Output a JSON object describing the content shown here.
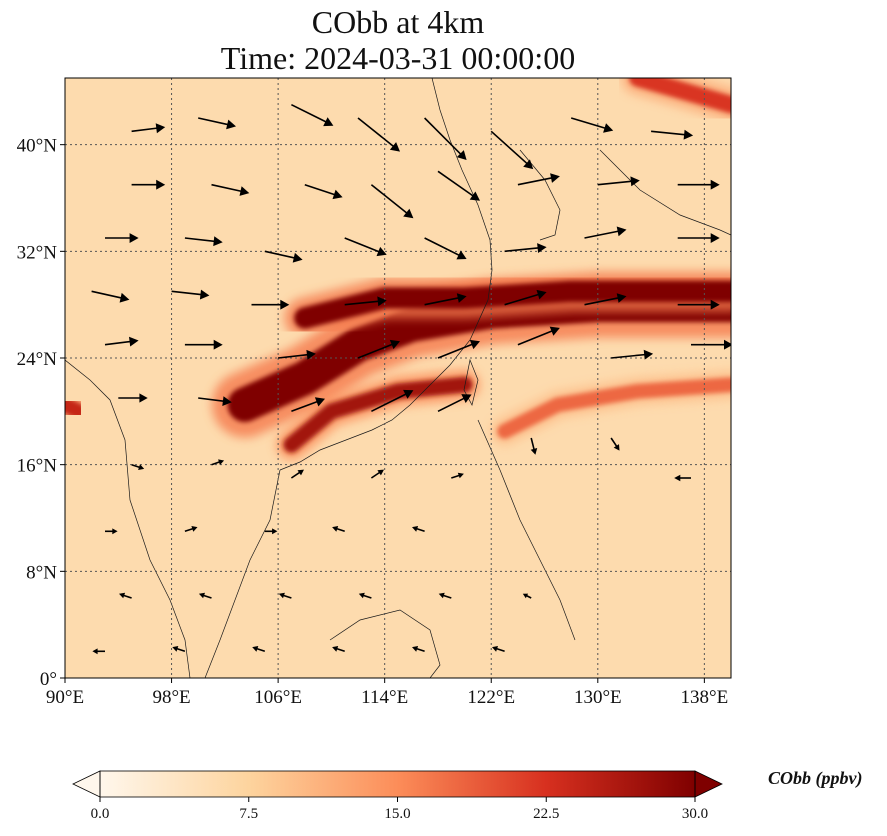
{
  "title": "CObb at 4km",
  "subtitle": "Time: 2024-03-31 00:00:00",
  "colorbar": {
    "label": "CObb (ppbv)",
    "ticks": [
      "0.0",
      "7.5",
      "15.0",
      "22.5",
      "30.0"
    ],
    "tick_values": [
      0,
      7.5,
      15,
      22.5,
      30
    ],
    "colormap": [
      "#fff7ec",
      "#fdd49e",
      "#fc8d59",
      "#d7301f",
      "#7f0000"
    ]
  },
  "chart_data": {
    "type": "heatmap",
    "variable": "CObb",
    "units": "ppbv",
    "level": "4km",
    "time": "2024-03-31 00:00:00",
    "xlim": [
      90,
      140
    ],
    "ylim": [
      0,
      45
    ],
    "x_ticks": [
      90,
      98,
      106,
      114,
      122,
      130,
      138
    ],
    "x_tick_labels": [
      "90°E",
      "98°E",
      "106°E",
      "114°E",
      "122°E",
      "130°E",
      "138°E"
    ],
    "y_ticks": [
      0,
      8,
      16,
      24,
      32,
      40
    ],
    "y_tick_labels": [
      "0°",
      "8°N",
      "16°N",
      "24°N",
      "32°N",
      "40°N"
    ],
    "grid": true,
    "colorbar_range": [
      0,
      30
    ],
    "background_level": 6,
    "plumes": [
      {
        "desc": "main transport band",
        "path": [
          [
            103.5,
            20.5
          ],
          [
            108,
            22.5
          ],
          [
            112,
            25
          ],
          [
            116,
            26.5
          ],
          [
            122,
            27.5
          ],
          [
            130,
            28
          ],
          [
            140,
            28
          ]
        ],
        "width_deg": 2.6,
        "value": 30
      },
      {
        "desc": "upper band edge",
        "path": [
          [
            108,
            27
          ],
          [
            114,
            28.5
          ],
          [
            120,
            28.5
          ],
          [
            128,
            29
          ],
          [
            140,
            29
          ]
        ],
        "width_deg": 1.6,
        "value": 30
      },
      {
        "desc": "lower southern arm",
        "path": [
          [
            107,
            17.5
          ],
          [
            110,
            20
          ],
          [
            115,
            21.5
          ],
          [
            120,
            22
          ]
        ],
        "width_deg": 1.2,
        "value": 27
      },
      {
        "desc": "ocean filament",
        "path": [
          [
            123,
            18.5
          ],
          [
            127,
            20.5
          ],
          [
            133,
            21.5
          ],
          [
            140,
            22
          ]
        ],
        "width_deg": 1.1,
        "value": 18
      },
      {
        "desc": "western source",
        "path": [
          [
            90,
            20.5
          ],
          [
            91,
            20
          ]
        ],
        "width_deg": 1.2,
        "value": 24
      },
      {
        "desc": "northeast corner",
        "path": [
          [
            133,
            45
          ],
          [
            140,
            43
          ]
        ],
        "width_deg": 1.3,
        "value": 22
      }
    ],
    "wind_vectors": [
      {
        "lon": 95,
        "lat": 41,
        "u": 0.8,
        "v": 0.1
      },
      {
        "lon": 100,
        "lat": 42,
        "u": 0.9,
        "v": -0.2
      },
      {
        "lon": 107,
        "lat": 43,
        "u": 1.0,
        "v": -0.5
      },
      {
        "lon": 112,
        "lat": 42,
        "u": 1.0,
        "v": -0.8
      },
      {
        "lon": 117,
        "lat": 42,
        "u": 1.0,
        "v": -1.0
      },
      {
        "lon": 122,
        "lat": 41,
        "u": 1.0,
        "v": -0.9
      },
      {
        "lon": 128,
        "lat": 42,
        "u": 1.0,
        "v": -0.3
      },
      {
        "lon": 134,
        "lat": 41,
        "u": 1.0,
        "v": -0.1
      },
      {
        "lon": 95,
        "lat": 37,
        "u": 0.8,
        "v": 0.0
      },
      {
        "lon": 101,
        "lat": 37,
        "u": 0.9,
        "v": -0.2
      },
      {
        "lon": 108,
        "lat": 37,
        "u": 0.9,
        "v": -0.3
      },
      {
        "lon": 113,
        "lat": 37,
        "u": 1.0,
        "v": -0.8
      },
      {
        "lon": 118,
        "lat": 38,
        "u": 1.0,
        "v": -0.7
      },
      {
        "lon": 124,
        "lat": 37,
        "u": 1.0,
        "v": 0.2
      },
      {
        "lon": 130,
        "lat": 37,
        "u": 1.0,
        "v": 0.1
      },
      {
        "lon": 136,
        "lat": 37,
        "u": 1.0,
        "v": 0.0
      },
      {
        "lon": 93,
        "lat": 33,
        "u": 0.8,
        "v": 0.0
      },
      {
        "lon": 99,
        "lat": 33,
        "u": 0.9,
        "v": -0.1
      },
      {
        "lon": 105,
        "lat": 32,
        "u": 0.9,
        "v": -0.2
      },
      {
        "lon": 111,
        "lat": 33,
        "u": 1.0,
        "v": -0.4
      },
      {
        "lon": 117,
        "lat": 33,
        "u": 1.0,
        "v": -0.5
      },
      {
        "lon": 123,
        "lat": 32,
        "u": 1.0,
        "v": 0.1
      },
      {
        "lon": 129,
        "lat": 33,
        "u": 1.0,
        "v": 0.2
      },
      {
        "lon": 136,
        "lat": 33,
        "u": 1.0,
        "v": 0.0
      },
      {
        "lon": 92,
        "lat": 29,
        "u": 0.9,
        "v": -0.2
      },
      {
        "lon": 98,
        "lat": 29,
        "u": 0.9,
        "v": -0.1
      },
      {
        "lon": 104,
        "lat": 28,
        "u": 0.9,
        "v": 0.0
      },
      {
        "lon": 111,
        "lat": 28,
        "u": 1.0,
        "v": 0.1
      },
      {
        "lon": 117,
        "lat": 28,
        "u": 1.0,
        "v": 0.2
      },
      {
        "lon": 123,
        "lat": 28,
        "u": 1.0,
        "v": 0.3
      },
      {
        "lon": 129,
        "lat": 28,
        "u": 1.0,
        "v": 0.2
      },
      {
        "lon": 136,
        "lat": 28,
        "u": 1.0,
        "v": 0.0
      },
      {
        "lon": 93,
        "lat": 25,
        "u": 0.8,
        "v": 0.1
      },
      {
        "lon": 99,
        "lat": 25,
        "u": 0.9,
        "v": 0.0
      },
      {
        "lon": 106,
        "lat": 24,
        "u": 0.9,
        "v": 0.1
      },
      {
        "lon": 112,
        "lat": 24,
        "u": 1.0,
        "v": 0.4
      },
      {
        "lon": 118,
        "lat": 24,
        "u": 1.0,
        "v": 0.4
      },
      {
        "lon": 124,
        "lat": 25,
        "u": 1.0,
        "v": 0.4
      },
      {
        "lon": 131,
        "lat": 24,
        "u": 1.0,
        "v": 0.1
      },
      {
        "lon": 137,
        "lat": 25,
        "u": 1.0,
        "v": 0.0
      },
      {
        "lon": 94,
        "lat": 21,
        "u": 0.7,
        "v": 0.0
      },
      {
        "lon": 100,
        "lat": 21,
        "u": 0.8,
        "v": -0.1
      },
      {
        "lon": 107,
        "lat": 20,
        "u": 0.8,
        "v": 0.3
      },
      {
        "lon": 113,
        "lat": 20,
        "u": 1.0,
        "v": 0.5
      },
      {
        "lon": 118,
        "lat": 20,
        "u": 0.8,
        "v": 0.4
      },
      {
        "lon": 125,
        "lat": 18,
        "u": 0.1,
        "v": -0.4
      },
      {
        "lon": 131,
        "lat": 18,
        "u": 0.2,
        "v": -0.3
      },
      {
        "lon": 137,
        "lat": 15,
        "u": -0.4,
        "v": 0.0
      },
      {
        "lon": 95,
        "lat": 16,
        "u": 0.3,
        "v": -0.1
      },
      {
        "lon": 101,
        "lat": 16,
        "u": 0.3,
        "v": 0.1
      },
      {
        "lon": 107,
        "lat": 15,
        "u": 0.3,
        "v": 0.2
      },
      {
        "lon": 113,
        "lat": 15,
        "u": 0.3,
        "v": 0.2
      },
      {
        "lon": 119,
        "lat": 15,
        "u": 0.3,
        "v": 0.1
      },
      {
        "lon": 93,
        "lat": 11,
        "u": 0.3,
        "v": 0.0
      },
      {
        "lon": 99,
        "lat": 11,
        "u": 0.3,
        "v": 0.1
      },
      {
        "lon": 105,
        "lat": 11,
        "u": 0.3,
        "v": 0.0
      },
      {
        "lon": 111,
        "lat": 11,
        "u": -0.3,
        "v": 0.1
      },
      {
        "lon": 117,
        "lat": 11,
        "u": -0.3,
        "v": 0.1
      },
      {
        "lon": 95,
        "lat": 6,
        "u": -0.3,
        "v": 0.1
      },
      {
        "lon": 101,
        "lat": 6,
        "u": -0.3,
        "v": 0.1
      },
      {
        "lon": 107,
        "lat": 6,
        "u": -0.3,
        "v": 0.1
      },
      {
        "lon": 113,
        "lat": 6,
        "u": -0.3,
        "v": 0.1
      },
      {
        "lon": 119,
        "lat": 6,
        "u": -0.3,
        "v": 0.1
      },
      {
        "lon": 125,
        "lat": 6,
        "u": -0.2,
        "v": 0.1
      },
      {
        "lon": 93,
        "lat": 2,
        "u": -0.3,
        "v": 0.0
      },
      {
        "lon": 99,
        "lat": 2,
        "u": -0.3,
        "v": 0.1
      },
      {
        "lon": 105,
        "lat": 2,
        "u": -0.3,
        "v": 0.1
      },
      {
        "lon": 111,
        "lat": 2,
        "u": -0.3,
        "v": 0.1
      },
      {
        "lon": 117,
        "lat": 2,
        "u": -0.3,
        "v": 0.1
      },
      {
        "lon": 123,
        "lat": 2,
        "u": -0.3,
        "v": 0.1
      }
    ]
  }
}
